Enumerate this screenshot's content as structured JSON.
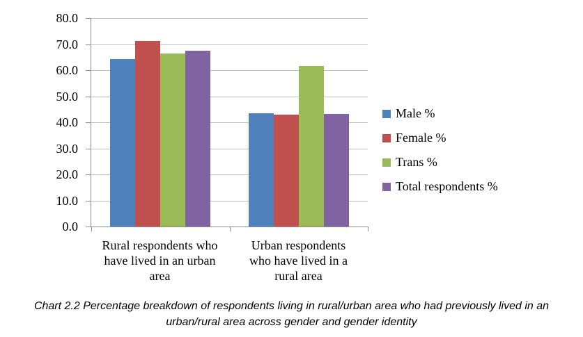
{
  "chart_data": {
    "type": "bar",
    "categories": [
      "Rural respondents who have lived in an urban area",
      "Urban respondents who have lived in a rural area"
    ],
    "category_lines": [
      [
        "Rural respondents who",
        "have lived in an urban",
        "area"
      ],
      [
        "Urban respondents",
        "who have lived in a",
        "rural area"
      ]
    ],
    "series": [
      {
        "name": "Male %",
        "color": "#4F81BD",
        "values": [
          64.3,
          43.4
        ]
      },
      {
        "name": "Female %",
        "color": "#C0504D",
        "values": [
          71.2,
          42.9
        ]
      },
      {
        "name": "Trans %",
        "color": "#9BBB59",
        "values": [
          66.4,
          61.5
        ]
      },
      {
        "name": "Total respondents %",
        "color": "#8064A2",
        "values": [
          67.4,
          43.2
        ]
      }
    ],
    "ylim": [
      0,
      80
    ],
    "ytick_step": 10,
    "ytick_labels": [
      "0.0",
      "10.0",
      "20.0",
      "30.0",
      "40.0",
      "50.0",
      "60.0",
      "70.0",
      "80.0"
    ],
    "grid": true,
    "legend_position": "right",
    "title": "",
    "xlabel": "",
    "ylabel": ""
  },
  "caption": "Chart 2.2 Percentage breakdown of respondents living in rural/urban area who had previously lived in an urban/rural area across gender and gender identity",
  "colors": {
    "axis": "#8C8C8C",
    "gridline": "#BFBFBF",
    "text": "#000000"
  }
}
